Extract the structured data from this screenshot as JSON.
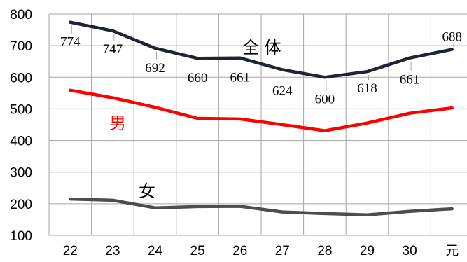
{
  "chart_data": {
    "type": "line",
    "categories": [
      "22",
      "23",
      "24",
      "25",
      "26",
      "27",
      "28",
      "29",
      "30",
      "元"
    ],
    "ylim": [
      100,
      800
    ],
    "yticks": [
      100,
      200,
      300,
      400,
      500,
      600,
      700,
      800
    ],
    "grid": "vertical and horizontal",
    "legend": "inline labels next to lines",
    "series": [
      {
        "name": "全 体",
        "color": "#1f2433",
        "values": [
          774,
          747,
          692,
          660,
          661,
          624,
          600,
          618,
          661,
          688
        ],
        "labels": [
          "774",
          "747",
          "692",
          "660",
          "661",
          "624",
          "600",
          "618",
          "661",
          "688"
        ]
      },
      {
        "name": "男",
        "color": "#ff0000",
        "values": [
          559,
          535,
          505,
          470,
          468,
          450,
          431,
          455,
          486,
          503
        ]
      },
      {
        "name": "女",
        "color": "#4d4d4d",
        "values": [
          215,
          211,
          187,
          191,
          192,
          174,
          169,
          165,
          176,
          184
        ]
      }
    ]
  }
}
